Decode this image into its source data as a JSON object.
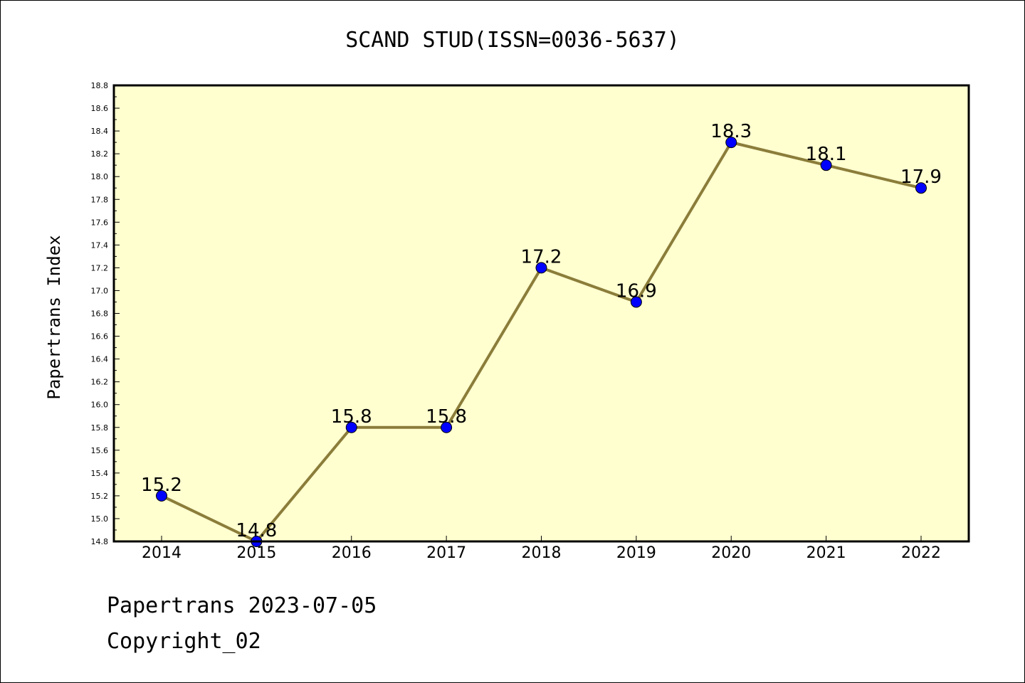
{
  "chart_data": {
    "type": "line",
    "title": "SCAND STUD(ISSN=0036-5637)",
    "xlabel": "",
    "ylabel": "Papertrans Index",
    "categories": [
      "2014",
      "2015",
      "2016",
      "2017",
      "2018",
      "2019",
      "2020",
      "2021",
      "2022"
    ],
    "series": [
      {
        "values": [
          15.2,
          14.8,
          15.8,
          15.8,
          17.2,
          16.9,
          18.3,
          18.1,
          17.9
        ],
        "data_labels": [
          "15.2",
          "14.8",
          "15.8",
          "15.8",
          "17.2",
          "16.9",
          "18.3",
          "18.1",
          "17.9"
        ],
        "line_color": "#8b7d3a",
        "marker_color": "#0000ff"
      }
    ],
    "ylim": [
      14.8,
      18.8
    ],
    "y_ticks": [
      "14.8",
      "15.0",
      "15.2",
      "15.4",
      "15.6",
      "15.8",
      "16.0",
      "16.2",
      "16.4",
      "16.6",
      "16.8",
      "17.0",
      "17.2",
      "17.4",
      "17.6",
      "17.8",
      "18.0",
      "18.2",
      "18.4",
      "18.6",
      "18.8"
    ],
    "grid": false,
    "legend": "none",
    "plot_background": "#ffffd0"
  },
  "footer": {
    "line1": "Papertrans 2023-07-05",
    "line2": "Copyright_02"
  }
}
